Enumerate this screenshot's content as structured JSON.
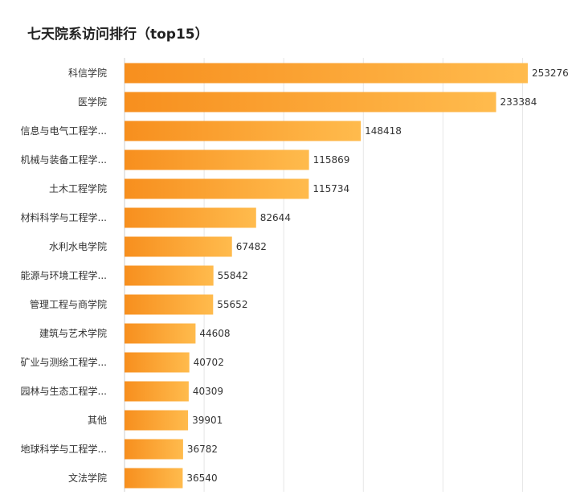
{
  "chart_data": {
    "type": "bar",
    "orientation": "horizontal",
    "title": "七天院系访问排行（top15）",
    "categories": [
      "科信学院",
      "医学院",
      "信息与电气工程学...",
      "机械与装备工程学...",
      "土木工程学院",
      "材料科学与工程学...",
      "水利水电学院",
      "能源与环境工程学...",
      "管理工程与商学院",
      "建筑与艺术学院",
      "矿业与测绘工程学...",
      "园林与生态工程学...",
      "其他",
      "地球科学与工程学...",
      "文法学院"
    ],
    "values": [
      253276,
      233384,
      148418,
      115869,
      115734,
      82644,
      67482,
      55842,
      55652,
      44608,
      40702,
      40309,
      39901,
      36782,
      36540
    ],
    "value_labels": [
      "253276",
      "233384",
      "148418",
      "115869",
      "115734",
      "82644",
      "67482",
      "55842",
      "55652",
      "44608",
      "40702",
      "40309",
      "39901",
      "36782",
      "36540"
    ],
    "xlim": [
      0,
      275000
    ],
    "grid": true,
    "legend": "none",
    "colors": {
      "bar_start": "#f78f1e",
      "bar_end": "#ffbb4d",
      "grid": "#e6e6e6",
      "axis": "#cccccc"
    }
  }
}
